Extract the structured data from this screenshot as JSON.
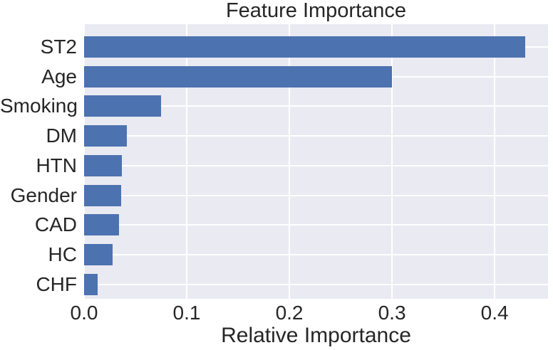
{
  "chart_data": {
    "type": "bar",
    "orientation": "horizontal",
    "title": "Feature Importance",
    "xlabel": "Relative Importance",
    "ylabel": "",
    "categories": [
      "ST2",
      "Age",
      "Smoking",
      "DM",
      "HTN",
      "Gender",
      "CAD",
      "HC",
      "CHF"
    ],
    "values": [
      0.43,
      0.3,
      0.075,
      0.042,
      0.037,
      0.036,
      0.034,
      0.028,
      0.013
    ],
    "x_ticks": [
      {
        "value": 0.0,
        "label": "0.0"
      },
      {
        "value": 0.1,
        "label": "0.1"
      },
      {
        "value": 0.2,
        "label": "0.2"
      },
      {
        "value": 0.3,
        "label": "0.3"
      },
      {
        "value": 0.4,
        "label": "0.4"
      }
    ],
    "xlim": [
      0,
      0.452
    ],
    "grid": true,
    "legend": null,
    "colors": {
      "bar": "#4c72b0",
      "plot_background": "#eaeaf2",
      "figure_background": "#ffffff",
      "grid_line": "#ffffff",
      "text": "#262626"
    }
  }
}
